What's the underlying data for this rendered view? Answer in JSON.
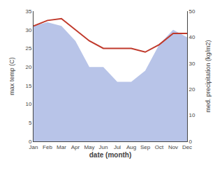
{
  "chart_data": {
    "type": "line",
    "categories": [
      "Jan",
      "Feb",
      "Mar",
      "Apr",
      "May",
      "Jun",
      "Jul",
      "Aug",
      "Sep",
      "Oct",
      "Nov",
      "Dec"
    ],
    "series": [
      {
        "type": "area",
        "color": "#b8c4e8",
        "values": [
          31,
          32,
          31,
          27,
          20,
          20,
          16,
          16,
          19,
          26,
          30,
          28
        ]
      },
      {
        "type": "line",
        "color": "#c0392b",
        "values": [
          31,
          32.5,
          33,
          30,
          27,
          25,
          25,
          25,
          24,
          26,
          29,
          29
        ]
      }
    ],
    "xlabel": "date (month)",
    "ylabel": "max temp (C)",
    "y2label": "med. precipitation (kg/m2)",
    "ylim": [
      0,
      35
    ],
    "yticks": [
      0,
      5,
      10,
      15,
      20,
      25,
      30,
      35
    ],
    "y2lim": [
      0,
      50
    ],
    "y2ticks": [
      0,
      10,
      20,
      30,
      40,
      50
    ],
    "grid": false
  }
}
